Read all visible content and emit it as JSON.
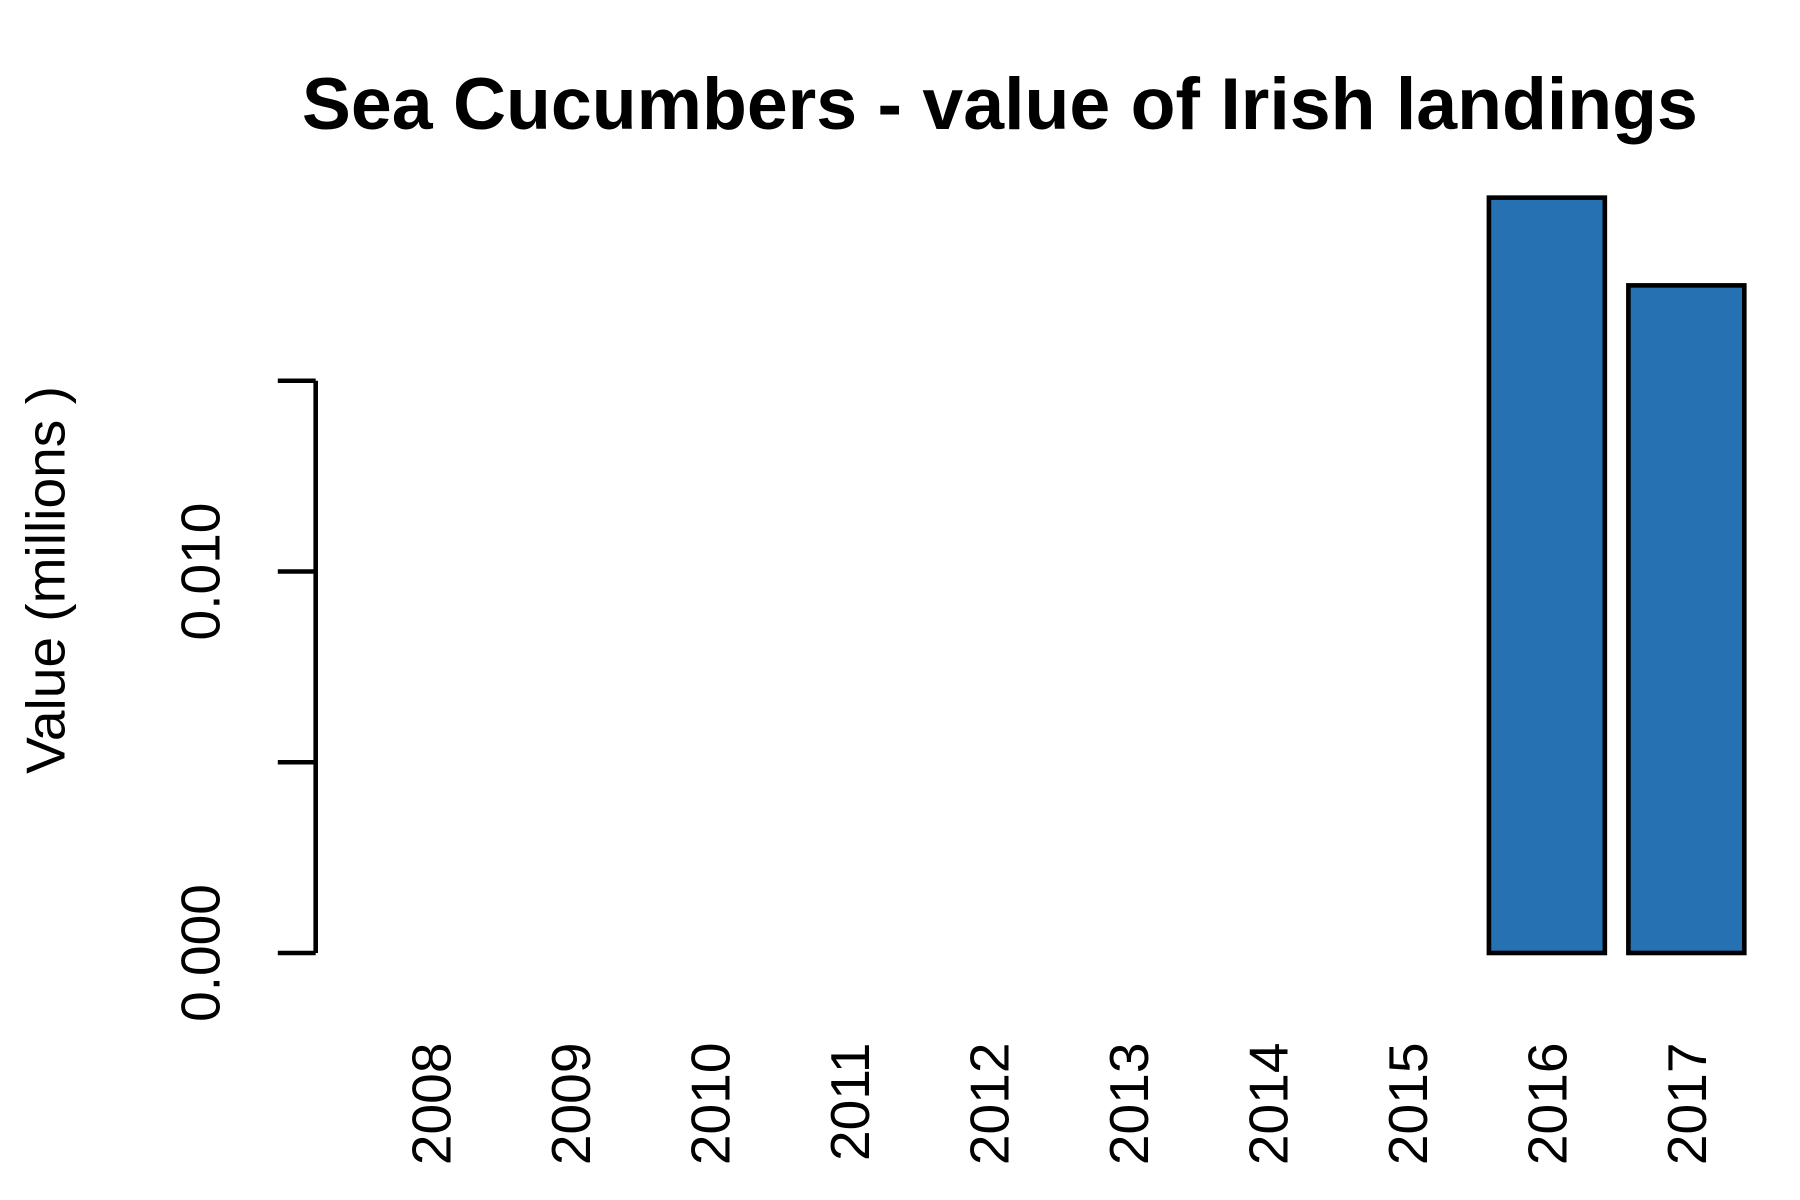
{
  "chart_data": {
    "type": "bar",
    "title": "Sea Cucumbers - value of Irish landings",
    "y_label": "Value (millions )",
    "categories": [
      "2008",
      "2009",
      "2010",
      "2011",
      "2012",
      "2013",
      "2014",
      "2015",
      "2016",
      "2017"
    ],
    "values": [
      null,
      null,
      null,
      null,
      null,
      null,
      null,
      null,
      0.0198,
      0.0175
    ],
    "color": "#2571b2",
    "ylim": [
      0,
      0.0198
    ],
    "yticks": [
      {
        "value": 0,
        "label": "0.000"
      },
      {
        "value": 0.005,
        "label": null
      },
      {
        "value": 0.01,
        "label": "0.010"
      },
      {
        "value": 0.015,
        "label": null
      }
    ],
    "grid": false
  }
}
